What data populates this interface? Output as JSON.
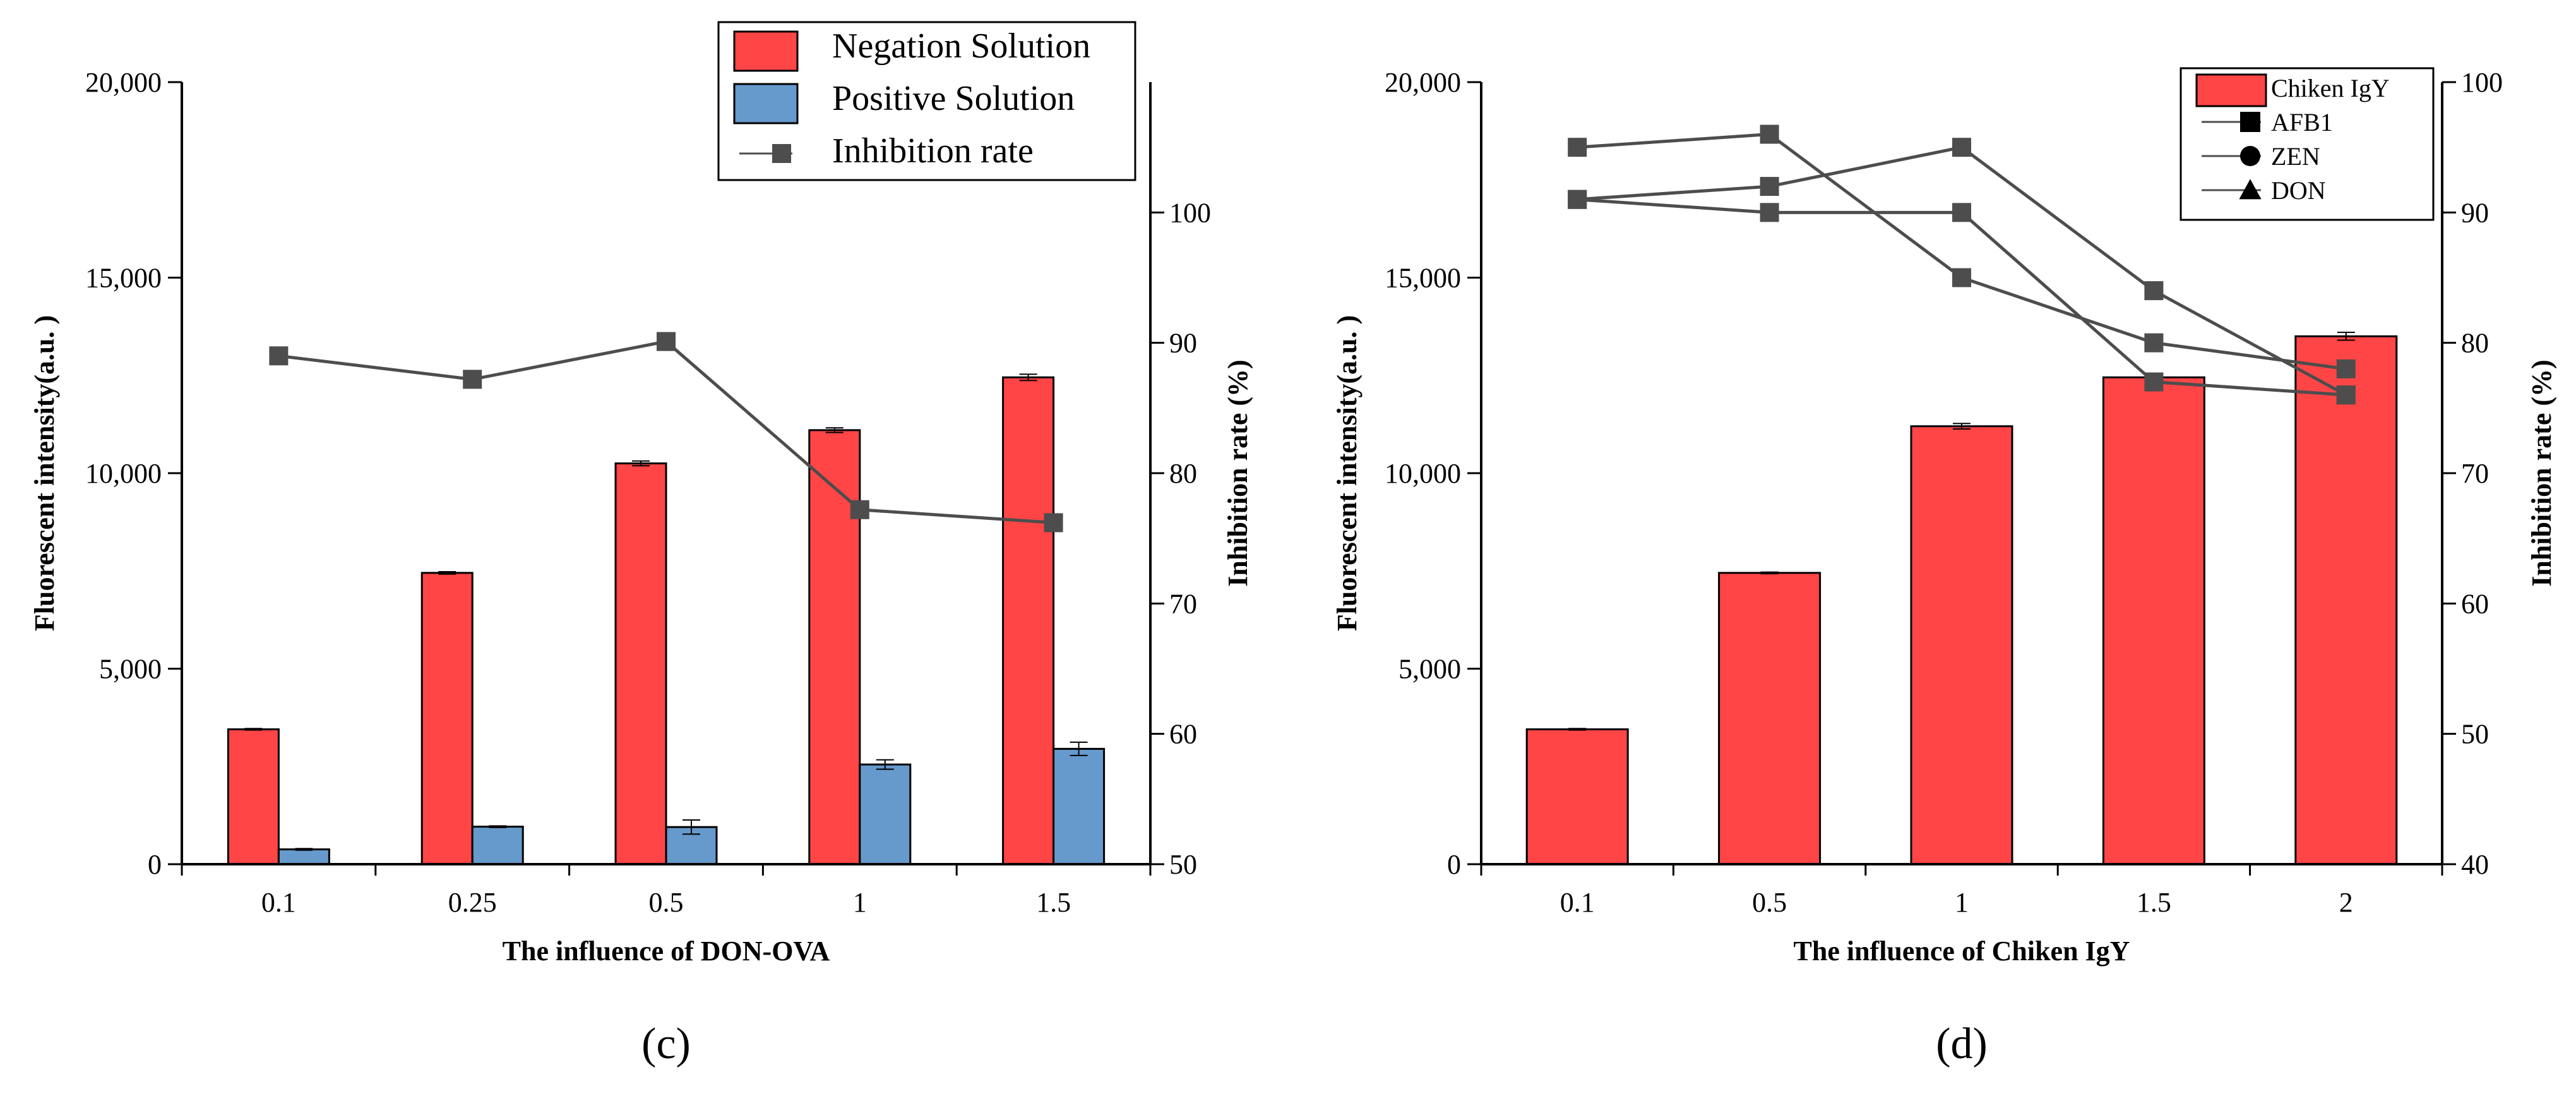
{
  "chart_data": [
    {
      "type": "bar",
      "panel_label": "(c)",
      "categories": [
        "0.1",
        "0.25",
        "0.5",
        "1",
        "1.5"
      ],
      "tick_labels_left": [
        "0",
        "5,000",
        "10,000",
        "15,000",
        "20,000"
      ],
      "tick_values_left": [
        0,
        5000,
        10000,
        15000,
        20000
      ],
      "tick_labels_right": [
        "50",
        "60",
        "70",
        "80",
        "90",
        "100"
      ],
      "tick_values_right": [
        50,
        60,
        70,
        80,
        90,
        100
      ],
      "ylim_left": [
        0,
        20000
      ],
      "ylim_right": [
        50,
        110
      ],
      "xlabel": "The influence of  DON-OVA",
      "ylabel": "Fluorescent intensity(a.u. )",
      "ylabel_right": "Inhibition rate (%)",
      "legend_position": "top-right",
      "series": [
        {
          "name": "Negation Solution",
          "axis": "left",
          "kind": "bar",
          "color": "#ff4545",
          "values": [
            3450,
            7450,
            10250,
            11100,
            12450
          ],
          "errors": [
            20,
            30,
            60,
            60,
            80
          ]
        },
        {
          "name": "Positive Solution",
          "axis": "left",
          "kind": "bar",
          "color": "#6699cc",
          "values": [
            380,
            960,
            950,
            2550,
            2950
          ],
          "errors": [
            20,
            20,
            180,
            120,
            170
          ]
        },
        {
          "name": "Inhibition rate",
          "axis": "right",
          "kind": "line",
          "marker": "square",
          "color": "#4d4d4d",
          "values": [
            89,
            87.2,
            90.1,
            77.2,
            76.2
          ]
        }
      ]
    },
    {
      "type": "bar",
      "panel_label": "(d)",
      "categories": [
        "0.1",
        "0.5",
        "1",
        "1.5",
        "2"
      ],
      "tick_labels_left": [
        "0",
        "5,000",
        "10,000",
        "15,000",
        "20,000"
      ],
      "tick_values_left": [
        0,
        5000,
        10000,
        15000,
        20000
      ],
      "tick_labels_right": [
        "40",
        "50",
        "60",
        "70",
        "80",
        "90",
        "100"
      ],
      "tick_values_right": [
        40,
        50,
        60,
        70,
        80,
        90,
        100
      ],
      "ylim_left": [
        0,
        20000
      ],
      "ylim_right": [
        40,
        100
      ],
      "xlabel": "The influence of  Chiken IgY",
      "ylabel": "Fluorescent intensity(a.u. )",
      "ylabel_right": "Inhibition rate (%)",
      "legend_position": "top-right",
      "series": [
        {
          "name": "Chiken IgY",
          "axis": "left",
          "kind": "bar",
          "color": "#ff4545",
          "values": [
            3450,
            7450,
            11200,
            12450,
            13500
          ],
          "errors": [
            20,
            20,
            70,
            40,
            100
          ]
        },
        {
          "name": "AFB1",
          "axis": "right",
          "kind": "line",
          "marker": "square",
          "color": "#4d4d4d",
          "values": [
            95,
            96,
            85,
            80,
            78
          ]
        },
        {
          "name": "ZEN",
          "axis": "right",
          "kind": "line",
          "marker": "circle",
          "color": "#4d4d4d",
          "values": [
            91,
            90,
            90,
            77,
            76
          ]
        },
        {
          "name": "DON",
          "axis": "right",
          "kind": "line",
          "marker": "triangle",
          "color": "#4d4d4d",
          "values": [
            91,
            92,
            95,
            84,
            76
          ]
        }
      ]
    }
  ]
}
